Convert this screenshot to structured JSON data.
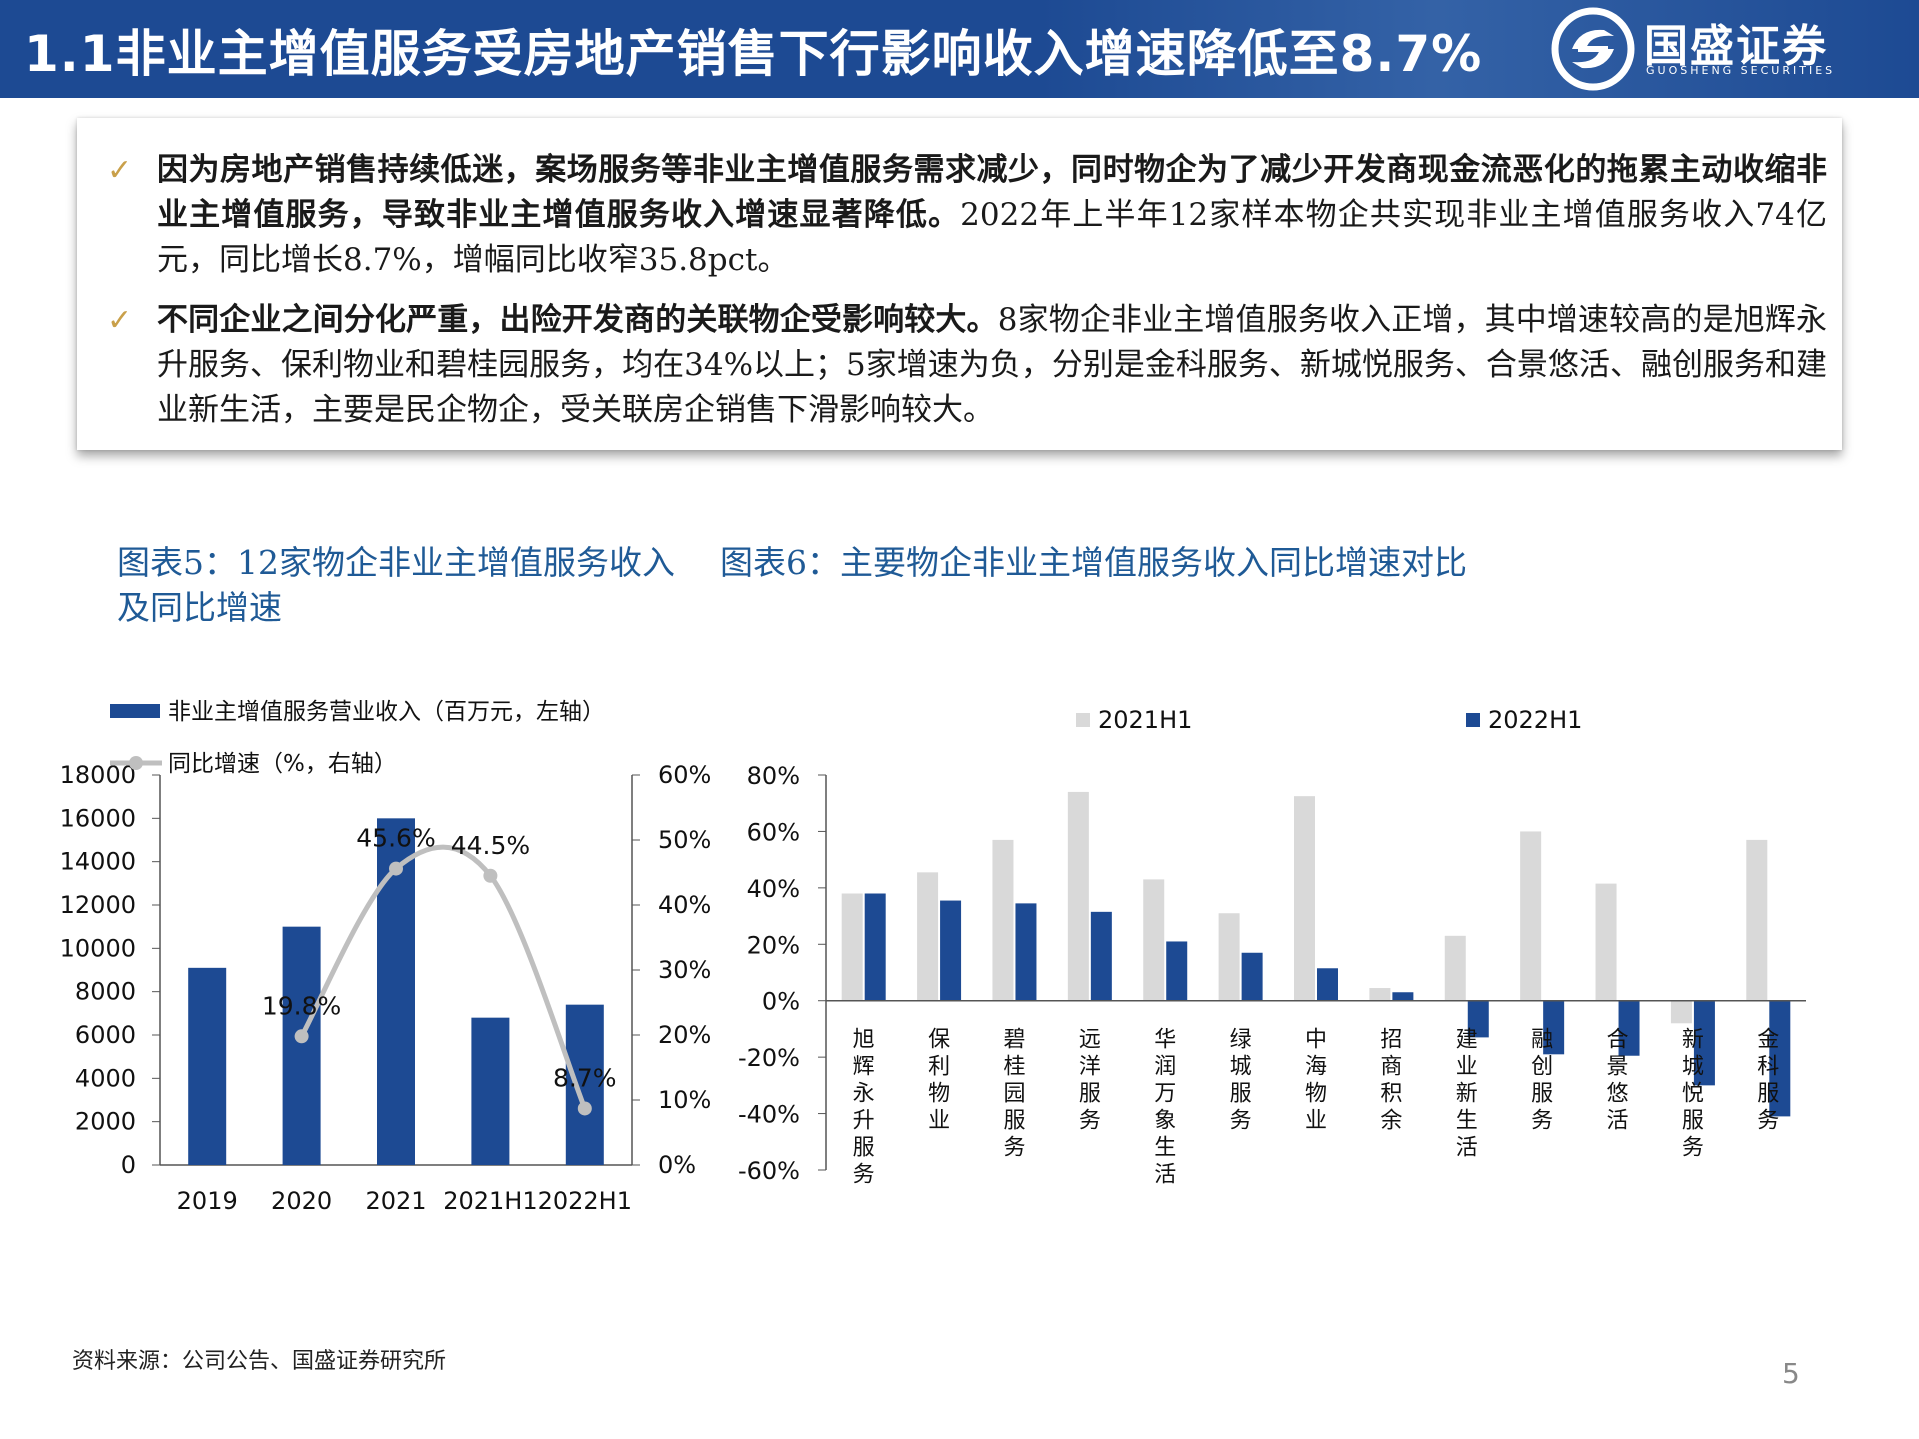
{
  "header": {
    "title": "1.1非业主增值服务受房地产销售下行影响收入增速降低至8.7%",
    "logo_name": "国盛证券",
    "logo_sub": "GUOSHENG SECURITIES",
    "bg_color": "#1d4a93"
  },
  "bullets": [
    {
      "icon": "check-icon",
      "bold": "因为房地产销售持续低迷，案场服务等非业主增值服务需求减少，同时物企为了减少开发商现金流恶化的拖累主动收缩非业主增值服务，导致非业主增值服务收入增速显著降低。",
      "text": "2022年上半年12家样本物企共实现非业主增值服务收入74亿元，同比增长8.7%，增幅同比收窄35.8pct。"
    },
    {
      "icon": "check-icon",
      "bold": "不同企业之间分化严重，出险开发商的关联物企受影响较大。",
      "text": "8家物企非业主增值服务收入正增，其中增速较高的是旭辉永升服务、保利物业和碧桂园服务，均在34%以上；5家增速为负，分别是金科服务、新城悦服务、合景悠活、融创服务和建业新生活，主要是民企物企，受关联房企销售下滑影响较大。"
    }
  ],
  "captions": {
    "chart5": "图表5：12家物企非业主增值服务收入及同比增速",
    "chart6": "图表6：主要物企非业主增值服务收入同比增速对比"
  },
  "chart_data": [
    {
      "type": "bar",
      "categories": [
        "2019",
        "2020",
        "2021",
        "2021H1",
        "2022H1"
      ],
      "series": [
        {
          "name": "非业主增值服务营业收入（百万元，左轴）",
          "type": "bar",
          "axis": "left",
          "color": "#1d4a93",
          "values": [
            9100,
            11000,
            16000,
            6800,
            7400
          ]
        },
        {
          "name": "同比增速（%，右轴）",
          "type": "line",
          "axis": "right",
          "color": "#bfbfbf",
          "values": [
            null,
            19.8,
            45.6,
            44.5,
            8.7
          ],
          "labels": [
            "",
            "19.8%",
            "45.6%",
            "44.5%",
            "8.7%"
          ]
        }
      ],
      "yticks_left": [
        "0",
        "2000",
        "4000",
        "6000",
        "8000",
        "10000",
        "12000",
        "14000",
        "16000",
        "18000"
      ],
      "ylim_left": [
        0,
        18000
      ],
      "yticks_right": [
        "0%",
        "10%",
        "20%",
        "30%",
        "40%",
        "50%",
        "60%"
      ],
      "ylim_right": [
        0,
        60
      ],
      "legend": "top-left"
    },
    {
      "type": "bar",
      "categories": [
        "旭辉永升服务",
        "保利物业",
        "碧桂园服务",
        "远洋服务",
        "华润万象生活",
        "绿城服务",
        "中海物业",
        "招商积余",
        "建业新生活",
        "融创服务",
        "合景悠活",
        "新城悦服务",
        "金科服务"
      ],
      "series": [
        {
          "name": "2021H1",
          "color": "#d9d9d9",
          "values": [
            38,
            45.5,
            57,
            74,
            43,
            31,
            72.5,
            4.5,
            23,
            60,
            41.5,
            -8,
            57
          ]
        },
        {
          "name": "2022H1",
          "color": "#1d4a93",
          "values": [
            38,
            35.5,
            34.5,
            31.5,
            21,
            17,
            11.5,
            3,
            -13,
            -19,
            -19.5,
            -30,
            -41
          ]
        }
      ],
      "yticks": [
        "-60%",
        "-40%",
        "-20%",
        "0%",
        "20%",
        "40%",
        "60%",
        "80%"
      ],
      "ylim": [
        -60,
        80
      ],
      "legend": "top"
    }
  ],
  "source": "资料来源：公司公告、国盛证券研究所",
  "page_number": "5"
}
